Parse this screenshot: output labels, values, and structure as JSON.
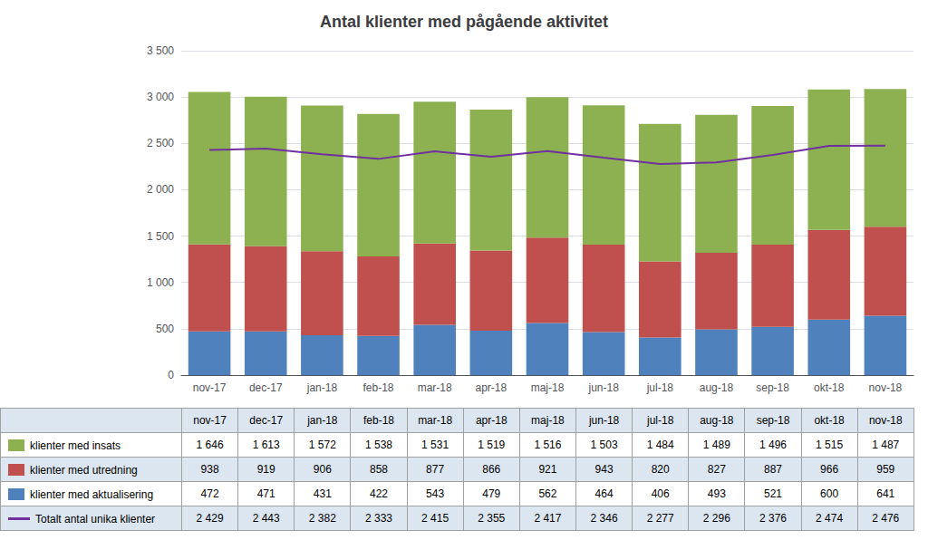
{
  "chart_data": {
    "type": "bar",
    "title": "Antal klienter med pågående aktivitet",
    "categories": [
      "nov-17",
      "dec-17",
      "jan-18",
      "feb-18",
      "mar-18",
      "apr-18",
      "maj-18",
      "jun-18",
      "jul-18",
      "aug-18",
      "sep-18",
      "okt-18",
      "nov-18"
    ],
    "stacked": true,
    "grid": true,
    "ylim": [
      0,
      3500
    ],
    "yticks": [
      0,
      500,
      {
        "value": 1000,
        "label": "1 000"
      },
      {
        "value": 1500,
        "label": "1 500"
      },
      {
        "value": 2000,
        "label": "2 000"
      },
      {
        "value": 2500,
        "label": "2 500"
      },
      {
        "value": 3000,
        "label": "3 000"
      },
      {
        "value": 3500,
        "label": "3 500"
      }
    ],
    "series": [
      {
        "name": "klienter med aktualisering",
        "type": "bar",
        "color": "#4f81bd",
        "values": [
          472,
          471,
          431,
          422,
          543,
          479,
          562,
          464,
          406,
          493,
          521,
          600,
          641
        ],
        "value_labels": [
          "472",
          "471",
          "431",
          "422",
          "543",
          "479",
          "562",
          "464",
          "406",
          "493",
          "521",
          "600",
          "641"
        ]
      },
      {
        "name": "klienter med utredning",
        "type": "bar",
        "color": "#c0504d",
        "values": [
          938,
          919,
          906,
          858,
          877,
          866,
          921,
          943,
          820,
          827,
          887,
          966,
          959
        ],
        "value_labels": [
          "938",
          "919",
          "906",
          "858",
          "877",
          "866",
          "921",
          "943",
          "820",
          "827",
          "887",
          "966",
          "959"
        ]
      },
      {
        "name": "klienter med insats",
        "type": "bar",
        "color": "#8db050",
        "values": [
          1646,
          1613,
          1572,
          1538,
          1531,
          1519,
          1516,
          1503,
          1484,
          1489,
          1496,
          1515,
          1487
        ],
        "value_labels": [
          "1 646",
          "1 613",
          "1 572",
          "1 538",
          "1 531",
          "1 519",
          "1 516",
          "1 503",
          "1 484",
          "1 489",
          "1 496",
          "1 515",
          "1 487"
        ]
      },
      {
        "name": "Totalt antal unika klienter",
        "type": "line",
        "color": "#7030a0",
        "values": [
          2429,
          2443,
          2382,
          2333,
          2415,
          2355,
          2417,
          2346,
          2277,
          2296,
          2376,
          2474,
          2476
        ],
        "value_labels": [
          "2 429",
          "2 443",
          "2 382",
          "2 333",
          "2 415",
          "2 355",
          "2 417",
          "2 346",
          "2 277",
          "2 296",
          "2 376",
          "2 474",
          "2 476"
        ]
      }
    ]
  }
}
